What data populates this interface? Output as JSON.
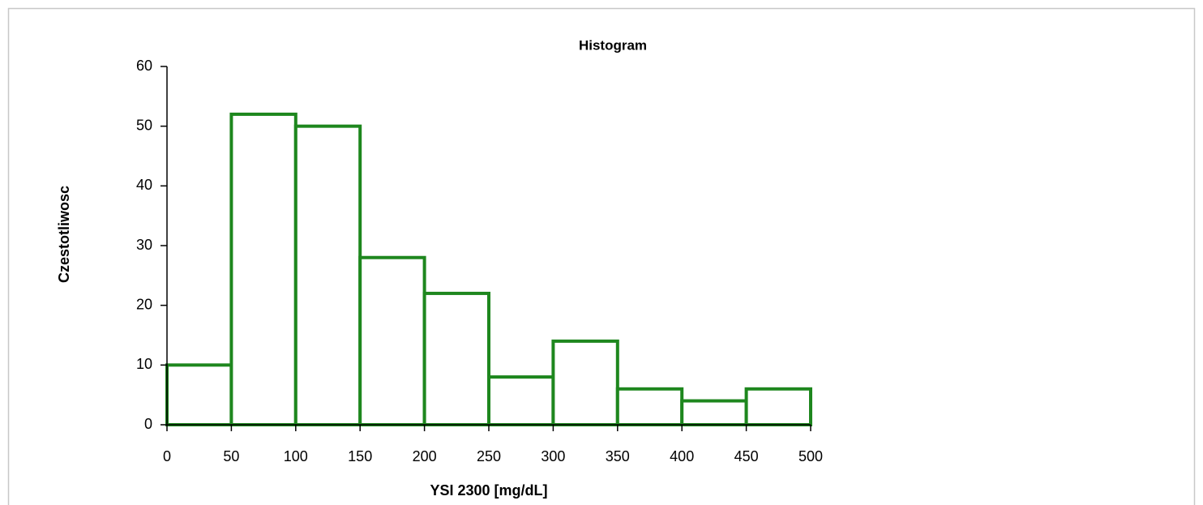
{
  "chart_data": {
    "type": "histogram",
    "title": "Histogram",
    "xlabel": "YSI 2300 [mg/dL]",
    "ylabel": "Czestotliwosc",
    "bins": [
      0,
      50,
      100,
      150,
      200,
      250,
      300,
      350,
      400,
      450,
      500
    ],
    "values": [
      10,
      52,
      50,
      28,
      22,
      8,
      14,
      6,
      4,
      6
    ],
    "color": "#1e871e",
    "xlim": [
      0,
      500
    ],
    "xticks": [
      0,
      50,
      100,
      150,
      200,
      250,
      300,
      350,
      400,
      450,
      500
    ],
    "ylim": [
      0,
      60
    ],
    "yticks": [
      0,
      10,
      20,
      30,
      40,
      50,
      60
    ],
    "grid": false
  }
}
